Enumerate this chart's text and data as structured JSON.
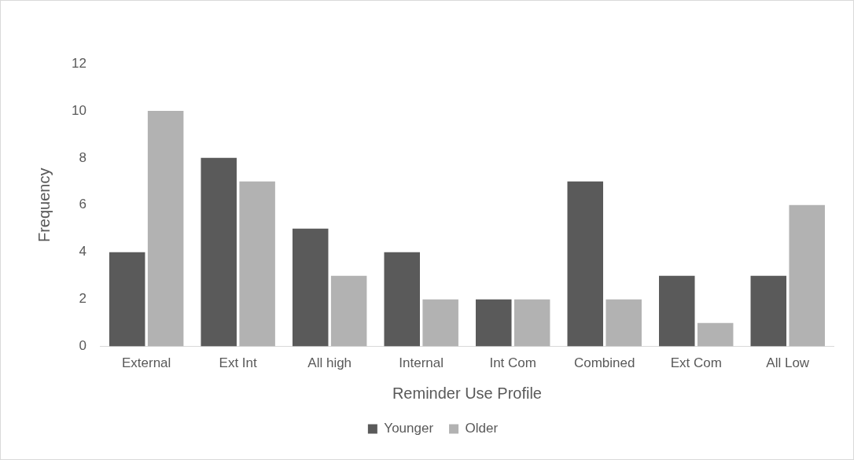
{
  "chart_data": {
    "type": "bar",
    "xlabel": "Reminder Use Profile",
    "ylabel": "Frequency",
    "categories": [
      "External",
      "Ext Int",
      "All high",
      "Internal",
      "Int Com",
      "Combined",
      "Ext Com",
      "All Low"
    ],
    "series": [
      {
        "name": "Younger",
        "color": "#5a5a5a",
        "values": [
          4,
          8,
          5,
          4,
          2,
          7,
          3,
          3
        ]
      },
      {
        "name": "Older",
        "color": "#b2b2b2",
        "values": [
          10,
          7,
          3,
          2,
          2,
          2,
          1,
          6
        ]
      }
    ],
    "ylim": [
      0,
      12
    ],
    "yticks": [
      0,
      2,
      4,
      6,
      8,
      10,
      12
    ],
    "grid": false,
    "legend": "bottom"
  }
}
